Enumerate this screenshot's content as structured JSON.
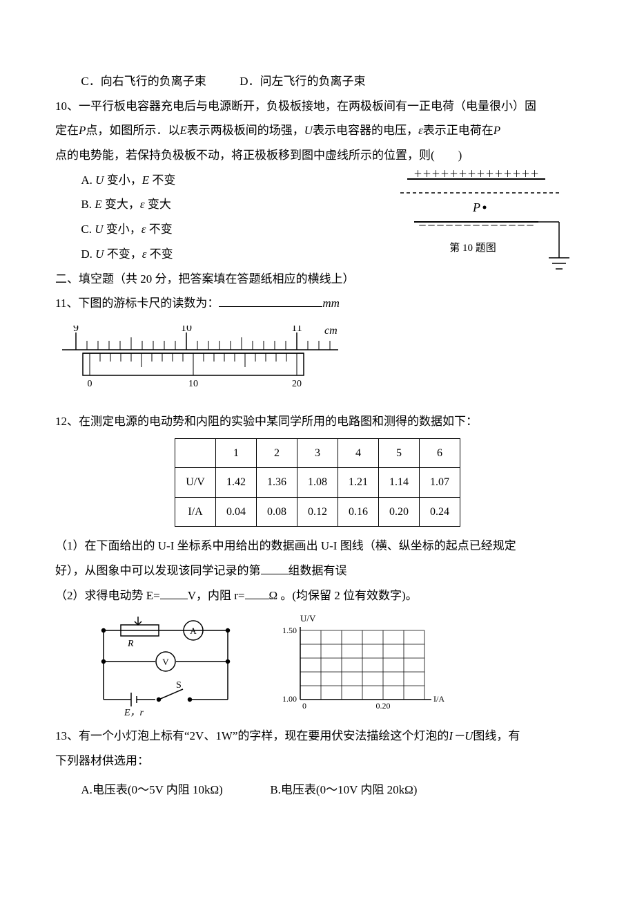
{
  "q9": {
    "optC": "C．向右飞行的负离子束",
    "optD": "D．问左飞行的负离子束"
  },
  "q10": {
    "num": "10、",
    "stem1": "一平行板电容器充电后与电源断开，负极板接地，在两极板间有一正电荷（电量很小）固",
    "stem2": "定在",
    "stem3": "点，如图所示．以",
    "stem4": "表示两极板间的场强，",
    "stem5": "表示电容器的电压，",
    "stem6": "表示正电荷在",
    "stem7": "点的电势能，若保持负极板不动，将正极板移到图中虚线所示的位置，则(　　)",
    "P": "P",
    "E": "E",
    "U": "U",
    "eps": "ε",
    "optA_pre": "A.",
    "optA_t1": "U",
    "optA_m": " 变小，",
    "optA_t2": "E",
    "optA_post": " 不变",
    "optB_pre": "B.",
    "optB_t1": "E",
    "optB_m": " 变大，",
    "optB_t2": "ε",
    "optB_post": " 变大",
    "optC_pre": "C.",
    "optC_t1": "U",
    "optC_m": " 变小，",
    "optC_t2": "ε",
    "optC_post": " 不变",
    "optD_pre": "D.",
    "optD_t1": "U",
    "optD_m": " 不变，",
    "optD_t2": "ε",
    "optD_post": " 不变",
    "fig": {
      "plus_row": "＋＋＋＋＋＋＋＋＋＋＋＋＋＋",
      "minus_row": "－－－－－－－－－－－－－",
      "Plabel": "P",
      "caption": "第 10 题图"
    }
  },
  "sec2": {
    "title": "二、填空题（共 20 分，把答案填在答题纸相应的横线上）"
  },
  "q11": {
    "num": "11、",
    "stem": "下图的游标卡尺的读数为：",
    "unit": "mm",
    "main_labels": [
      "9",
      "10",
      "11"
    ],
    "main_unit": "cm",
    "vernier_labels": [
      "0",
      "10",
      "20"
    ]
  },
  "q12": {
    "num": "12、",
    "stem": "在测定电源的电动势和内阻的实验中某同学所用的电路图和测得的数据如下：",
    "table": {
      "head": [
        "",
        "1",
        "2",
        "3",
        "4",
        "5",
        "6"
      ],
      "rows": [
        [
          "U/V",
          "1.42",
          "1.36",
          "1.08",
          "1.21",
          "1.14",
          "1.07"
        ],
        [
          "I/A",
          "0.04",
          "0.08",
          "0.12",
          "0.16",
          "0.20",
          "0.24"
        ]
      ]
    },
    "p1a": "（1）在下面给出的 U-I 坐标系中用给出的数据画出 U-I 图线（横、纵坐标的起点已经规定",
    "p1b": "好），从图象中可以发现该同学记录的第",
    "p1c": "组数据有误",
    "p2a": "（2）求得电动势 E=",
    "p2b": "V，内阻 r=",
    "p2c": "Ω 。(均保留 2 位有效数字)。",
    "circuit": {
      "R": "R",
      "A": "A",
      "V": "V",
      "S": "S",
      "Er": "E，r"
    },
    "grid": {
      "ylabel": "U/V",
      "xlabel": "I/A",
      "yticks": [
        "1.50",
        "1.00"
      ],
      "xticks": [
        "0",
        "0.20"
      ]
    }
  },
  "q13": {
    "num": "13、",
    "stem_a": "有一个小灯泡上标有“2V、1W”的字样，现在要用伏安法描绘这个灯泡的",
    "IU": "I－U",
    "stem_b": "图线，有",
    "stem_c": "下列器材供选用：",
    "optA": "A.电压表(0～5V 内阻 10kΩ)",
    "optB": "B.电压表(0～10V 内阻 20kΩ)"
  }
}
